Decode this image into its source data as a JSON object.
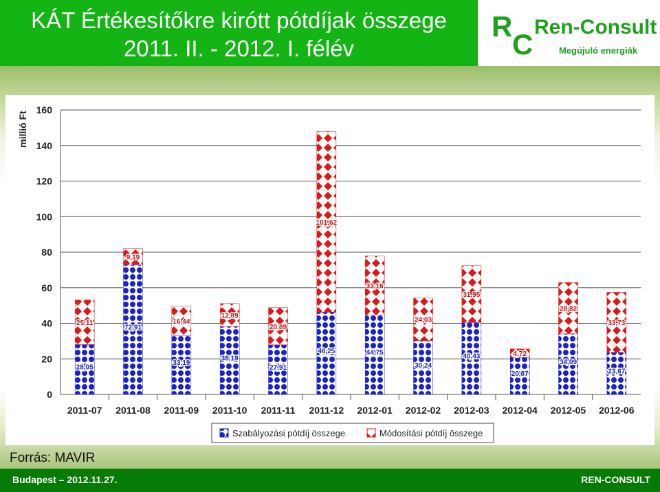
{
  "header": {
    "title_line1": "KÁT Értékesítőkre kirótt pótdíjak összege",
    "title_line2": "2011. II. - 2012. I. félév"
  },
  "logo": {
    "letter_r": "R",
    "letter_c": "C",
    "name": "Ren-Consult",
    "tagline": "Megújuló energiák"
  },
  "source": "Forrás: MAVIR",
  "footer": {
    "left": "Budapest – 2012.11.27.",
    "right": "REN-CONSULT"
  },
  "colors": {
    "header_bg": "#14b414",
    "footer_bg": "#067a06",
    "series1": "#1a22cc",
    "series2": "#dd1818"
  },
  "chart_data": {
    "type": "bar",
    "stacked": true,
    "ylabel": "millió Ft",
    "ylim": [
      0,
      160
    ],
    "yticks": [
      0,
      20,
      40,
      60,
      80,
      100,
      120,
      140,
      160
    ],
    "grid": true,
    "legend_position": "bottom",
    "categories": [
      "2011-07",
      "2011-08",
      "2011-09",
      "2011-10",
      "2011-11",
      "2011-12",
      "2012-01",
      "2012-02",
      "2012-03",
      "2012-04",
      "2012-05",
      "2012-06"
    ],
    "series": [
      {
        "name": "Szabályozási pótdíj összege",
        "values": [
          28.05,
          72.91,
          33.19,
          38.19,
          27.91,
          46.25,
          44.75,
          30.24,
          40.43,
          20.87,
          34.09,
          23.67
        ],
        "labels": [
          "28,05",
          "72,91",
          "33,19",
          "38,19",
          "27,91",
          "46,25",
          "44,75",
          "30,24",
          "40,43",
          "20,87",
          "34,09",
          "23,67"
        ]
      },
      {
        "name": "Módosítási pótdíj összege",
        "values": [
          25.11,
          9.19,
          16.44,
          12.89,
          20.89,
          101.62,
          33.16,
          24.03,
          31.95,
          4.72,
          28.82,
          33.73
        ],
        "labels": [
          "25,11",
          "9,19",
          "16,44",
          "12,89",
          "20,89",
          "101,62",
          "33,16",
          "24,03",
          "31,95",
          "4,72",
          "28,82",
          "33,73"
        ]
      }
    ]
  }
}
